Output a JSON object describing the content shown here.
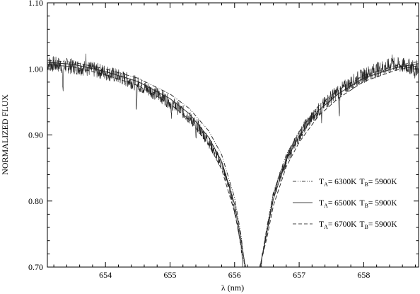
{
  "chart_data": {
    "type": "line",
    "title": "",
    "xlabel": "λ (nm)",
    "ylabel": "NORMALIZED FLUX",
    "xlim": [
      653.1,
      658.85
    ],
    "ylim": [
      0.7,
      1.1
    ],
    "x_ticks": [
      654,
      655,
      656,
      657,
      658
    ],
    "x_tick_labels": [
      "654",
      "655",
      "656",
      "657",
      "658"
    ],
    "y_ticks": [
      0.7,
      0.8,
      0.9,
      1.0,
      1.1
    ],
    "y_tick_labels": [
      "0.70",
      "0.80",
      "0.90",
      "1.00",
      "1.10"
    ],
    "grid": false,
    "legend_position": "right",
    "line_center": 656.28,
    "series": [
      {
        "kind": "model",
        "line_style": "dash-dot",
        "legend": {
          "t_a_label": "T",
          "t_a_sub": "A",
          "t_a_value": "= 6300K",
          "t_b_label": "T",
          "t_b_sub": "B",
          "t_b_value": "= 5900K"
        },
        "x": [
          653.1,
          653.5,
          654.0,
          654.5,
          655.0,
          655.3,
          655.6,
          655.8,
          656.0,
          656.1,
          656.15,
          656.41,
          656.5,
          656.6,
          656.8,
          657.0,
          657.3,
          657.6,
          658.0,
          658.5,
          658.85
        ],
        "y": [
          1.013,
          1.01,
          1.0,
          0.986,
          0.962,
          0.94,
          0.906,
          0.87,
          0.805,
          0.748,
          0.705,
          0.705,
          0.76,
          0.812,
          0.87,
          0.905,
          0.944,
          0.968,
          0.99,
          1.005,
          1.011
        ]
      },
      {
        "kind": "model",
        "line_style": "solid",
        "legend": {
          "t_a_label": "T",
          "t_a_sub": "A",
          "t_a_value": "= 6500K",
          "t_b_label": "T",
          "t_b_sub": "B",
          "t_b_value": "= 5900K"
        },
        "x": [
          653.1,
          653.5,
          654.0,
          654.5,
          655.0,
          655.3,
          655.6,
          655.8,
          656.0,
          656.1,
          656.16,
          656.4,
          656.5,
          656.6,
          656.8,
          657.0,
          657.3,
          657.6,
          658.0,
          658.5,
          658.85
        ],
        "y": [
          1.01,
          1.007,
          0.996,
          0.981,
          0.955,
          0.932,
          0.896,
          0.86,
          0.795,
          0.742,
          0.703,
          0.703,
          0.752,
          0.803,
          0.862,
          0.898,
          0.937,
          0.962,
          0.986,
          1.002,
          1.008
        ]
      },
      {
        "kind": "model",
        "line_style": "dashed",
        "legend": {
          "t_a_label": "T",
          "t_a_sub": "A",
          "t_a_value": "= 6700K",
          "t_b_label": "T",
          "t_b_sub": "B",
          "t_b_value": "= 5900K"
        },
        "x": [
          653.1,
          653.5,
          654.0,
          654.5,
          655.0,
          655.3,
          655.6,
          655.8,
          656.0,
          656.1,
          656.17,
          656.39,
          656.5,
          656.6,
          656.8,
          657.0,
          657.3,
          657.6,
          658.0,
          658.5,
          658.85
        ],
        "y": [
          1.007,
          1.003,
          0.991,
          0.975,
          0.947,
          0.923,
          0.885,
          0.848,
          0.783,
          0.734,
          0.701,
          0.701,
          0.744,
          0.793,
          0.852,
          0.889,
          0.929,
          0.955,
          0.981,
          0.998,
          1.005
        ]
      },
      {
        "kind": "observed",
        "line_style": "noisy-solid",
        "x": [
          653.1,
          653.4,
          653.7,
          654.0,
          654.3,
          654.5,
          654.8,
          655.0,
          655.2,
          655.4,
          655.6,
          655.8,
          655.95,
          656.05,
          656.12,
          656.42,
          656.5,
          656.6,
          656.75,
          656.9,
          657.1,
          657.3,
          657.5,
          657.7,
          657.9,
          658.1,
          658.3,
          658.5,
          658.7,
          658.85
        ],
        "y": [
          1.008,
          1.005,
          1.001,
          0.995,
          0.985,
          0.977,
          0.962,
          0.95,
          0.935,
          0.917,
          0.89,
          0.855,
          0.81,
          0.762,
          0.715,
          0.712,
          0.755,
          0.808,
          0.85,
          0.882,
          0.915,
          0.938,
          0.958,
          0.972,
          0.985,
          0.995,
          1.002,
          1.006,
          1.004,
          1.001
        ],
        "absorption_lines": [
          {
            "x": 653.34,
            "depth": 0.045
          },
          {
            "x": 654.48,
            "depth": 0.035
          },
          {
            "x": 655.02,
            "depth": 0.025
          },
          {
            "x": 655.4,
            "depth": 0.025
          },
          {
            "x": 657.35,
            "depth": 0.02
          },
          {
            "x": 657.62,
            "depth": 0.04
          },
          {
            "x": 658.79,
            "depth": 0.02
          }
        ],
        "emission_spikes": [
          {
            "x": 653.7,
            "height": 0.02
          },
          {
            "x": 658.44,
            "height": 0.025
          }
        ]
      }
    ]
  }
}
